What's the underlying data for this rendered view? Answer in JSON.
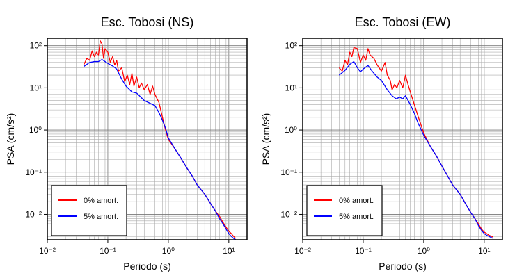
{
  "chart_data": [
    {
      "type": "line",
      "title": "Esc. Tobosi (NS)",
      "xlabel": "Periodo (s)",
      "ylabel": "PSA (cm/s²)",
      "x_scale": "log",
      "y_scale": "log",
      "xlim": [
        0.01,
        20
      ],
      "ylim": [
        0.0025,
        150
      ],
      "grid": true,
      "legend_position": "bottom-left",
      "x_ticks": [
        "10⁻²",
        "10⁻¹",
        "10⁰",
        "10¹"
      ],
      "y_ticks": [
        "10⁻²",
        "10⁻¹",
        "10⁰",
        "10¹",
        "10²"
      ],
      "series": [
        {
          "name": "0% amort.",
          "color": "#ff0000",
          "points": [
            [
              0.04,
              35
            ],
            [
              0.045,
              50
            ],
            [
              0.05,
              45
            ],
            [
              0.055,
              75
            ],
            [
              0.06,
              55
            ],
            [
              0.065,
              70
            ],
            [
              0.07,
              60
            ],
            [
              0.075,
              130
            ],
            [
              0.08,
              110
            ],
            [
              0.085,
              50
            ],
            [
              0.09,
              85
            ],
            [
              0.1,
              70
            ],
            [
              0.11,
              40
            ],
            [
              0.12,
              55
            ],
            [
              0.13,
              35
            ],
            [
              0.14,
              45
            ],
            [
              0.15,
              25
            ],
            [
              0.17,
              30
            ],
            [
              0.19,
              14
            ],
            [
              0.21,
              20
            ],
            [
              0.23,
              12
            ],
            [
              0.25,
              22
            ],
            [
              0.27,
              11
            ],
            [
              0.3,
              18
            ],
            [
              0.33,
              10
            ],
            [
              0.36,
              13
            ],
            [
              0.4,
              9
            ],
            [
              0.45,
              12
            ],
            [
              0.5,
              7
            ],
            [
              0.55,
              11
            ],
            [
              0.6,
              7
            ],
            [
              0.7,
              4.5
            ],
            [
              0.8,
              2
            ],
            [
              0.9,
              1
            ],
            [
              1.0,
              0.6
            ],
            [
              1.3,
              0.35
            ],
            [
              1.6,
              0.22
            ],
            [
              2.0,
              0.13
            ],
            [
              2.5,
              0.08
            ],
            [
              3,
              0.05
            ],
            [
              4,
              0.03
            ],
            [
              5,
              0.018
            ],
            [
              6,
              0.012
            ],
            [
              7,
              0.009
            ],
            [
              8,
              0.0065
            ],
            [
              9,
              0.005
            ],
            [
              10,
              0.004
            ],
            [
              11,
              0.0035
            ],
            [
              12,
              0.003
            ],
            [
              13,
              0.0027
            ]
          ]
        },
        {
          "name": "5% amort.",
          "color": "#0000ff",
          "points": [
            [
              0.04,
              32
            ],
            [
              0.05,
              40
            ],
            [
              0.06,
              42
            ],
            [
              0.07,
              42
            ],
            [
              0.08,
              47
            ],
            [
              0.09,
              42
            ],
            [
              0.1,
              38
            ],
            [
              0.12,
              33
            ],
            [
              0.14,
              28
            ],
            [
              0.17,
              16
            ],
            [
              0.2,
              11
            ],
            [
              0.25,
              8
            ],
            [
              0.3,
              7.5
            ],
            [
              0.4,
              5
            ],
            [
              0.5,
              4.3
            ],
            [
              0.6,
              3.8
            ],
            [
              0.7,
              2.6
            ],
            [
              0.8,
              1.7
            ],
            [
              0.9,
              1.1
            ],
            [
              1.0,
              0.65
            ],
            [
              1.3,
              0.35
            ],
            [
              1.6,
              0.22
            ],
            [
              2.0,
              0.13
            ],
            [
              2.5,
              0.08
            ],
            [
              3,
              0.05
            ],
            [
              4,
              0.03
            ],
            [
              5,
              0.018
            ],
            [
              6,
              0.012
            ],
            [
              7,
              0.008
            ],
            [
              8,
              0.006
            ],
            [
              9,
              0.0045
            ],
            [
              10,
              0.0035
            ],
            [
              11,
              0.003
            ],
            [
              12,
              0.0027
            ],
            [
              13,
              0.0025
            ]
          ]
        }
      ]
    },
    {
      "type": "line",
      "title": "Esc. Tobosi (EW)",
      "xlabel": "Periodo (s)",
      "ylabel": "PSA (cm/s²)",
      "x_scale": "log",
      "y_scale": "log",
      "xlim": [
        0.01,
        20
      ],
      "ylim": [
        0.0025,
        150
      ],
      "grid": true,
      "legend_position": "bottom-left",
      "x_ticks": [
        "10⁻²",
        "10⁻¹",
        "10⁰",
        "10¹"
      ],
      "y_ticks": [
        "10⁻²",
        "10⁻¹",
        "10⁰",
        "10¹",
        "10²"
      ],
      "series": [
        {
          "name": "0% amort.",
          "color": "#ff0000",
          "points": [
            [
              0.04,
              30
            ],
            [
              0.045,
              25
            ],
            [
              0.05,
              45
            ],
            [
              0.055,
              35
            ],
            [
              0.06,
              70
            ],
            [
              0.065,
              55
            ],
            [
              0.07,
              90
            ],
            [
              0.08,
              85
            ],
            [
              0.09,
              40
            ],
            [
              0.1,
              60
            ],
            [
              0.11,
              45
            ],
            [
              0.12,
              85
            ],
            [
              0.13,
              60
            ],
            [
              0.15,
              50
            ],
            [
              0.17,
              35
            ],
            [
              0.2,
              25
            ],
            [
              0.23,
              40
            ],
            [
              0.25,
              20
            ],
            [
              0.28,
              15
            ],
            [
              0.3,
              9
            ],
            [
              0.33,
              12
            ],
            [
              0.36,
              10
            ],
            [
              0.4,
              15
            ],
            [
              0.45,
              10
            ],
            [
              0.5,
              20
            ],
            [
              0.55,
              12
            ],
            [
              0.6,
              8
            ],
            [
              0.7,
              4
            ],
            [
              0.8,
              2.2
            ],
            [
              1.0,
              0.85
            ],
            [
              1.3,
              0.4
            ],
            [
              1.6,
              0.25
            ],
            [
              2.0,
              0.14
            ],
            [
              2.5,
              0.08
            ],
            [
              3,
              0.05
            ],
            [
              4,
              0.03
            ],
            [
              5,
              0.017
            ],
            [
              6,
              0.011
            ],
            [
              7,
              0.008
            ],
            [
              8,
              0.006
            ],
            [
              9,
              0.0045
            ],
            [
              10,
              0.0038
            ],
            [
              11,
              0.0035
            ],
            [
              12,
              0.0032
            ],
            [
              14,
              0.0029
            ]
          ]
        },
        {
          "name": "5% amort.",
          "color": "#0000ff",
          "points": [
            [
              0.04,
              20
            ],
            [
              0.05,
              26
            ],
            [
              0.06,
              36
            ],
            [
              0.07,
              42
            ],
            [
              0.08,
              30
            ],
            [
              0.09,
              24
            ],
            [
              0.1,
              28
            ],
            [
              0.12,
              34
            ],
            [
              0.14,
              25
            ],
            [
              0.17,
              18
            ],
            [
              0.2,
              15
            ],
            [
              0.25,
              9
            ],
            [
              0.3,
              6.5
            ],
            [
              0.35,
              5.5
            ],
            [
              0.4,
              6
            ],
            [
              0.45,
              5.5
            ],
            [
              0.5,
              6.5
            ],
            [
              0.6,
              4
            ],
            [
              0.7,
              2.5
            ],
            [
              0.8,
              1.5
            ],
            [
              1.0,
              0.75
            ],
            [
              1.3,
              0.4
            ],
            [
              1.6,
              0.25
            ],
            [
              2.0,
              0.14
            ],
            [
              2.5,
              0.08
            ],
            [
              3,
              0.05
            ],
            [
              4,
              0.03
            ],
            [
              5,
              0.017
            ],
            [
              6,
              0.011
            ],
            [
              7,
              0.008
            ],
            [
              8,
              0.0055
            ],
            [
              9,
              0.0042
            ],
            [
              10,
              0.0035
            ],
            [
              11,
              0.0032
            ],
            [
              12,
              0.003
            ],
            [
              14,
              0.0027
            ]
          ]
        }
      ]
    }
  ]
}
